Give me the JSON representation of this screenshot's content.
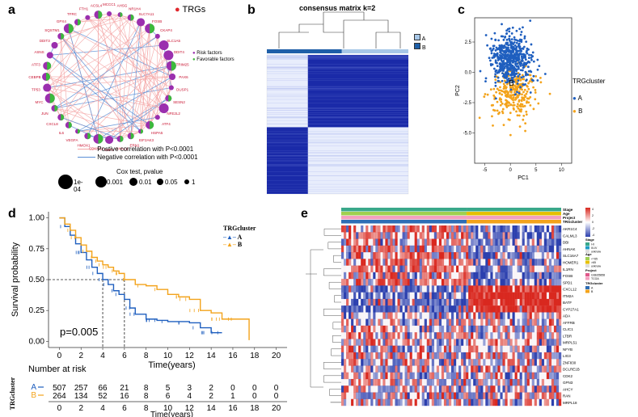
{
  "panel_labels": {
    "a": "a",
    "b": "b",
    "c": "c",
    "d": "d",
    "e": "e"
  },
  "colors": {
    "risk": "#9b2fae",
    "favorable": "#3cba3c",
    "pos_line": "#f4a6a6",
    "neg_line": "#5b8fd6",
    "blue": "#1f5fbf",
    "orange": "#f3a31b",
    "heat_dark": "#1a2aa8",
    "heat_light": "#dfe6fb",
    "hm_red": "#d9281f",
    "hm_blue": "#2b3fae"
  },
  "network": {
    "title": "TRGs",
    "genes": [
      "MCCC1",
      "AHSG",
      "NR1H4",
      "SLC7A11",
      "FOSB",
      "CKAP4",
      "SLC1A5",
      "DDIT4",
      "TRIM25",
      "PAX6",
      "DUSP1",
      "SESN2",
      "NFE2L2",
      "ATF4",
      "HSPA5",
      "EIF2AK3",
      "ERN1",
      "CHAC1",
      "XBP1",
      "CDKN1A",
      "HMOX1",
      "VEGFA",
      "IL6",
      "CXCL8",
      "JUN",
      "MYC",
      "TP53",
      "CEBPB",
      "ATF3",
      "ASNS",
      "DDIT3",
      "SQSTM1",
      "GPX4",
      "TFRC",
      "FTH1",
      "ACSL4"
    ],
    "legend_risk": "Risk factors",
    "legend_fav": "Favorable factors",
    "pos_text": "Postive correlation with P<0.0001",
    "neg_text": "Negative correlation with P<0.0001",
    "cox_title": "Cox test, pvalue",
    "cox_labels": [
      "1e-04",
      "0.001",
      "0.01",
      "0.05",
      "1"
    ]
  },
  "consensus": {
    "title": "consensus matrix k=2",
    "legend": [
      "A",
      "B"
    ]
  },
  "pca": {
    "legend_title": "TRGcluster",
    "legend_items": [
      "A",
      "B"
    ],
    "annotation": "B"
  },
  "survival": {
    "pvalue": "p=0.005",
    "legend_title": "TRGcluster",
    "risk_title": "Number at risk",
    "risk_ylabel": "TRGcluster",
    "risk_rows": [
      {
        "label": "A",
        "values": [
          "507",
          "257",
          "66",
          "21",
          "8",
          "5",
          "3",
          "2",
          "0",
          "0",
          "0"
        ]
      },
      {
        "label": "B",
        "values": [
          "264",
          "134",
          "52",
          "16",
          "8",
          "6",
          "4",
          "2",
          "1",
          "0",
          "0"
        ]
      }
    ]
  },
  "heatmap": {
    "annotation_rows": [
      "Stage",
      "Age",
      "Project",
      "TRGcluster"
    ],
    "genes": [
      "AKR1C4",
      "CALML3",
      "DBI",
      "AHNAK",
      "SLC16A7",
      "HOMER1",
      "IL1RN",
      "FOSB",
      "SPD1",
      "CXCL12",
      "ITM2A",
      "BATF",
      "CYP27A1",
      "ADA",
      "AFFRB",
      "CLIC1",
      "LTBR",
      "MRPL51",
      "NFYB",
      "LIG3",
      "ZNF830",
      "DCLRE1B",
      "CDK2",
      "GPN3",
      "AHCY",
      "RAN",
      "MRPL18"
    ],
    "legend_scale": [
      "4",
      "2",
      "0",
      "-2",
      "-4"
    ],
    "legend_stage_title": "Stage",
    "legend_stage": [
      "I-II",
      "III-IV",
      "unknow"
    ],
    "legend_age_title": "Age",
    "legend_age": [
      "<=65",
      ">65",
      "unknow"
    ],
    "legend_project_title": "Project",
    "legend_project": [
      "GSE65858",
      "TCGA"
    ],
    "legend_cluster_title": "TRGcluster",
    "legend_cluster": [
      "A",
      "B"
    ]
  },
  "chart_data": [
    {
      "type": "scatter",
      "panel": "c",
      "title": "",
      "xlabel": "PC1",
      "ylabel": "PC2",
      "xlim": [
        -7,
        12
      ],
      "ylim": [
        -7.5,
        4.5
      ],
      "xticks": [
        -5,
        0,
        5,
        10
      ],
      "yticks": [
        2.5,
        0.0,
        -2.5,
        -5.0
      ],
      "xtick_labels": [
        "-5",
        "0",
        "5",
        "10"
      ],
      "ytick_labels": [
        "2.5",
        "0.0",
        "-2.5",
        "-5.0"
      ],
      "series": [
        {
          "name": "A",
          "center": [
            0,
            1.0
          ],
          "spread": [
            2.2,
            1.1
          ],
          "count": 520
        },
        {
          "name": "B",
          "center": [
            0.4,
            -1.8
          ],
          "spread": [
            2.2,
            1.0
          ],
          "count": 280
        }
      ]
    },
    {
      "type": "line",
      "panel": "d",
      "title": "",
      "xlabel": "Time(years)",
      "ylabel": "Survival probability",
      "xlim": [
        -1,
        21
      ],
      "ylim": [
        -0.05,
        1.05
      ],
      "xticks": [
        0,
        2,
        4,
        6,
        8,
        10,
        12,
        14,
        16,
        18,
        20
      ],
      "xtick_labels": [
        "0",
        "2",
        "4",
        "6",
        "8",
        "10",
        "12",
        "14",
        "16",
        "18",
        "20"
      ],
      "yticks": [
        0,
        0.25,
        0.5,
        0.75,
        1
      ],
      "ytick_labels": [
        "0.00",
        "0.25",
        "0.50",
        "0.75",
        "1.00"
      ],
      "median_times": [
        4,
        6
      ],
      "series": [
        {
          "name": "A",
          "x": [
            0,
            0.5,
            1,
            1.5,
            2,
            2.5,
            3,
            3.5,
            4,
            4.5,
            5,
            5.5,
            6,
            6.5,
            7,
            8,
            9,
            10,
            11,
            12,
            13,
            14,
            15
          ],
          "y": [
            1,
            0.93,
            0.86,
            0.79,
            0.72,
            0.66,
            0.6,
            0.55,
            0.5,
            0.46,
            0.41,
            0.38,
            0.34,
            0.27,
            0.22,
            0.18,
            0.17,
            0.16,
            0.16,
            0.15,
            0.11,
            0.07,
            0.07
          ]
        },
        {
          "name": "B",
          "x": [
            0,
            0.5,
            1,
            1.5,
            2,
            2.5,
            3,
            3.5,
            4,
            4.5,
            5,
            5.5,
            6,
            7,
            8,
            9,
            10,
            11,
            12,
            13,
            14,
            15,
            16,
            17,
            17.5
          ],
          "y": [
            1,
            0.95,
            0.9,
            0.84,
            0.78,
            0.73,
            0.68,
            0.65,
            0.62,
            0.6,
            0.57,
            0.55,
            0.5,
            0.46,
            0.45,
            0.42,
            0.38,
            0.36,
            0.34,
            0.25,
            0.23,
            0.18,
            0.18,
            0.18,
            0.01
          ]
        }
      ]
    }
  ]
}
